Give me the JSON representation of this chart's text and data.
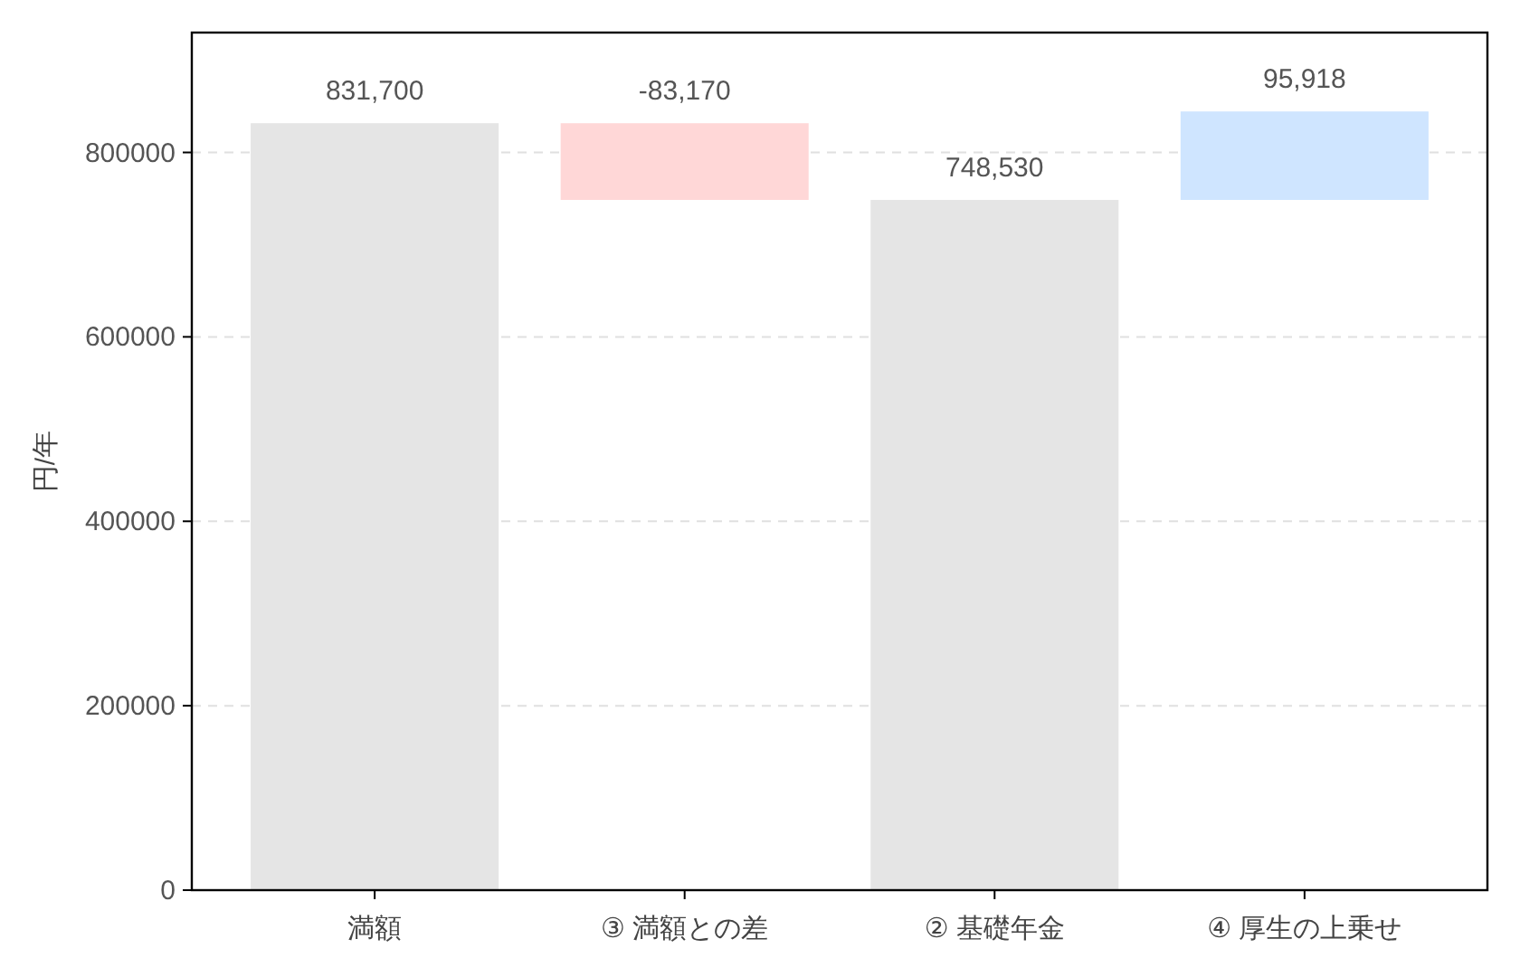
{
  "chart_data": {
    "type": "bar",
    "ylabel": "円/年",
    "categories": [
      "満額",
      "③ 満額との差",
      "② 基礎年金",
      "④ 厚生の上乗せ"
    ],
    "values": [
      831700,
      -83170,
      748530,
      95918
    ],
    "base": [
      0,
      831700,
      0,
      748530
    ],
    "colors": [
      "#e5e5e5",
      "#ffd7d7",
      "#e5e5e5",
      "#cfe5ff"
    ],
    "value_labels": [
      "831,700",
      "-83,170",
      "748,530",
      "95,918"
    ],
    "ylim": [
      0,
      930000
    ],
    "yticks": [
      0,
      200000,
      400000,
      600000,
      800000
    ],
    "grid": "y"
  }
}
